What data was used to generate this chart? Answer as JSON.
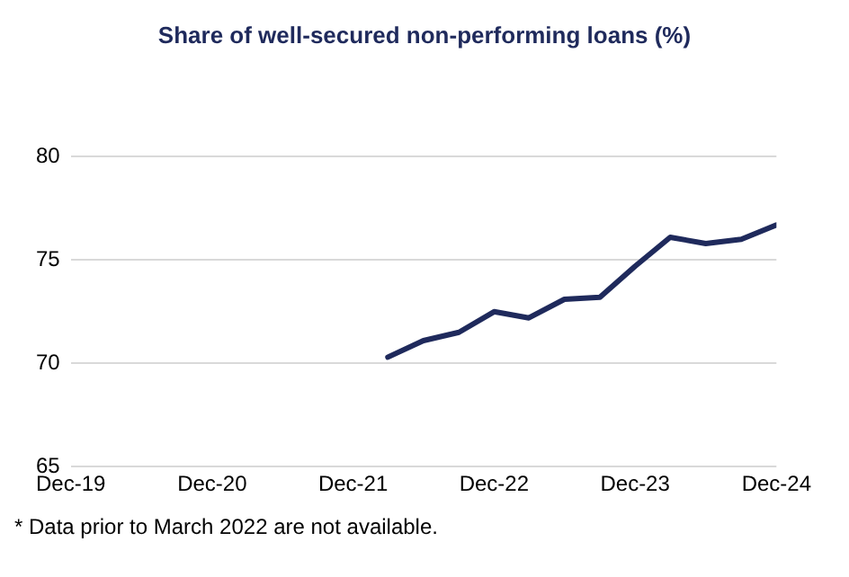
{
  "chart_data": {
    "type": "line",
    "title": "Share of well-secured non-performing loans (%)",
    "x": [
      "2022-03",
      "2022-06",
      "2022-09",
      "2022-12",
      "2023-03",
      "2023-06",
      "2023-09",
      "2023-12",
      "2024-03",
      "2024-06",
      "2024-09",
      "2024-12"
    ],
    "series": [
      {
        "color": "#1f2a5c",
        "values": [
          70.3,
          71.1,
          71.5,
          72.5,
          72.2,
          73.1,
          73.2,
          74.7,
          76.1,
          75.8,
          76.0,
          76.7
        ]
      }
    ],
    "xlim": [
      "2019-12",
      "2024-12"
    ],
    "xticks": [
      {
        "value": "2019-12",
        "label": "Dec-19"
      },
      {
        "value": "2020-12",
        "label": "Dec-20"
      },
      {
        "value": "2021-12",
        "label": "Dec-21"
      },
      {
        "value": "2022-12",
        "label": "Dec-22"
      },
      {
        "value": "2023-12",
        "label": "Dec-23"
      },
      {
        "value": "2024-12",
        "label": "Dec-24"
      }
    ],
    "ylim": [
      65,
      80
    ],
    "yticks": [
      65,
      70,
      75,
      80
    ],
    "grid": "y",
    "legend": false,
    "marker": "none",
    "line_style": "solid",
    "annotations": [
      "* Data prior to March 2022 are not available."
    ]
  }
}
